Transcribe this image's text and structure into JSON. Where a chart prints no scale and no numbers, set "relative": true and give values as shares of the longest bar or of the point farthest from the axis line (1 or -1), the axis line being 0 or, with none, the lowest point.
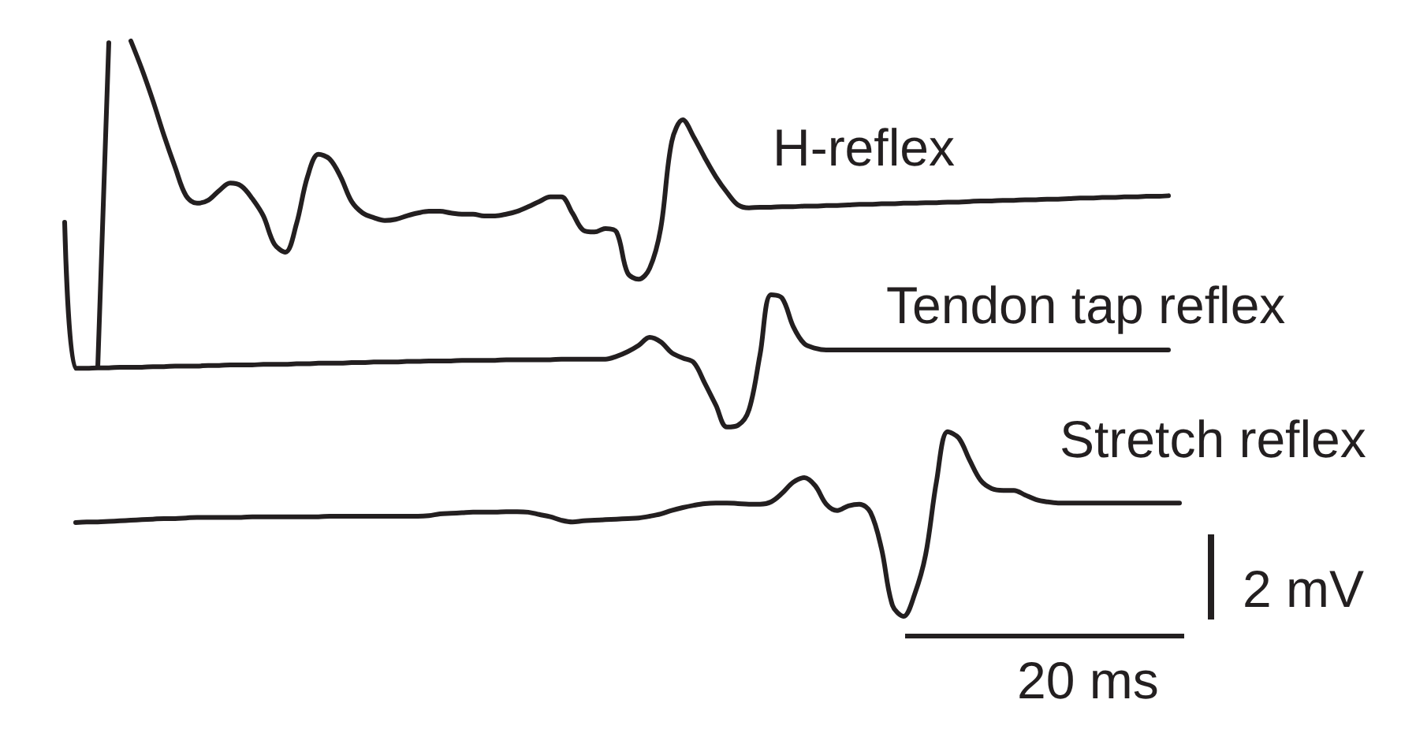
{
  "chart_data": {
    "type": "line",
    "relative": true,
    "line_style": "solid",
    "categories": [
      null,
      null,
      null,
      null,
      null,
      null,
      null,
      null,
      null,
      null,
      null,
      null,
      null,
      null,
      null,
      null,
      null,
      null,
      null,
      null,
      null,
      null,
      null,
      null,
      null,
      null,
      null,
      null,
      null,
      null,
      null,
      null,
      null,
      null,
      null,
      null,
      null,
      null,
      null,
      null,
      null,
      null,
      null,
      null,
      null,
      null,
      null,
      null,
      null,
      null,
      null,
      null,
      null,
      null,
      null,
      null,
      null,
      null,
      null,
      null,
      null,
      null,
      null,
      null,
      null,
      null,
      null,
      null,
      null,
      null,
      null,
      null,
      null,
      null,
      null,
      null,
      null,
      null,
      null,
      null,
      null,
      null,
      null,
      null,
      null,
      null,
      null,
      null,
      null,
      null,
      null,
      null,
      null,
      null,
      null,
      null,
      null,
      null,
      null,
      null,
      null,
      null
    ],
    "series": [
      {
        "name": "H-reflex",
        "color": "#231f20",
        "values": [
          null,
          null,
          null,
          0.433,
          0.997,
          null,
          1,
          0.951,
          0.896,
          0.836,
          0.781,
          0.731,
          0.718,
          0.723,
          0.74,
          0.753,
          0.748,
          0.726,
          0.696,
          0.647,
          0.633,
          0.682,
          0.764,
          0.803,
          0.795,
          0.764,
          0.721,
          0.701,
          0.693,
          0.688,
          0.69,
          0.696,
          0.701,
          0.704,
          0.704,
          0.701,
          0.699,
          0.699,
          0.696,
          0.696,
          0.699,
          0.704,
          0.712,
          0.721,
          0.729,
          0.729,
          0.701,
          0.671,
          0.668,
          0.674,
          0.668,
          0.597,
          0.586,
          0.605,
          0.674,
          0.825,
          0.863,
          0.833,
          0.797,
          0.764,
          0.737,
          0.715,
          0.71,
          0.711,
          0.711,
          0.712,
          0.712,
          0.713,
          0.713,
          0.714,
          0.714,
          0.715,
          0.716,
          0.716,
          0.717,
          0.717,
          0.718,
          0.718,
          0.719,
          0.719,
          0.72,
          0.72,
          0.721,
          0.722,
          0.722,
          0.723,
          0.723,
          0.724,
          0.724,
          0.725,
          0.725,
          0.726,
          0.727,
          0.727,
          0.728,
          0.728,
          0.729,
          0.729,
          0.73,
          0.73,
          0.731,
          null
        ]
      },
      {
        "name": "Tendon tap reflex",
        "color": "#231f20",
        "values": [
          0.685,
          0.431,
          0.431,
          0.432,
          0.432,
          0.433,
          0.433,
          0.433,
          0.434,
          0.434,
          0.435,
          0.435,
          0.435,
          0.436,
          0.436,
          0.437,
          0.437,
          0.437,
          0.438,
          0.438,
          0.438,
          0.439,
          0.439,
          0.44,
          0.44,
          0.44,
          0.441,
          0.441,
          0.442,
          0.442,
          0.442,
          0.443,
          0.443,
          0.444,
          0.444,
          0.444,
          0.445,
          0.445,
          0.445,
          0.445,
          0.446,
          0.446,
          0.446,
          0.446,
          0.446,
          0.447,
          0.447,
          0.447,
          0.447,
          0.447,
          0.452,
          0.46,
          0.471,
          0.485,
          0.477,
          0.458,
          0.449,
          0.441,
          0.405,
          0.367,
          0.329,
          0.332,
          0.359,
          0.455,
          0.559,
          0.553,
          0.504,
          0.474,
          0.466,
          0.463,
          0.463,
          0.463,
          0.463,
          0.463,
          0.463,
          0.463,
          0.463,
          0.463,
          0.463,
          0.463,
          0.463,
          0.463,
          0.463,
          0.463,
          0.463,
          0.463,
          0.463,
          0.463,
          0.463,
          0.463,
          0.463,
          0.463,
          0.463,
          0.463,
          0.463,
          0.463,
          0.463,
          0.463,
          0.463,
          0.463,
          0.463,
          null
        ]
      },
      {
        "name": "Stretch reflex",
        "color": "#231f20",
        "values": [
          null,
          0.163,
          0.164,
          0.164,
          0.165,
          0.166,
          0.167,
          0.168,
          0.169,
          0.17,
          0.17,
          0.171,
          0.172,
          0.172,
          0.172,
          0.172,
          0.172,
          0.173,
          0.173,
          0.173,
          0.173,
          0.173,
          0.173,
          0.173,
          0.174,
          0.174,
          0.174,
          0.174,
          0.174,
          0.174,
          0.174,
          0.174,
          0.174,
          0.175,
          0.178,
          0.179,
          0.18,
          0.181,
          0.181,
          0.181,
          0.182,
          0.182,
          0.181,
          0.177,
          0.173,
          0.167,
          0.164,
          0.166,
          0.167,
          0.168,
          0.169,
          0.17,
          0.171,
          0.174,
          0.178,
          0.184,
          0.189,
          0.193,
          0.196,
          0.197,
          0.197,
          0.196,
          0.195,
          0.195,
          0.199,
          0.214,
          0.233,
          0.241,
          0.227,
          0.195,
          0.184,
          0.192,
          0.195,
          0.181,
          0.118,
          0.019,
          0,
          0.038,
          0.107,
          0.236,
          0.321,
          0.31,
          0.271,
          0.236,
          0.222,
          0.219,
          0.219,
          0.211,
          0.203,
          0.199,
          0.197,
          0.197,
          0.197,
          0.197,
          0.197,
          0.197,
          0.197,
          0.197,
          0.197,
          0.197,
          0.197,
          0.197
        ]
      }
    ],
    "annotations": [
      "2 mV",
      "20 ms"
    ]
  }
}
